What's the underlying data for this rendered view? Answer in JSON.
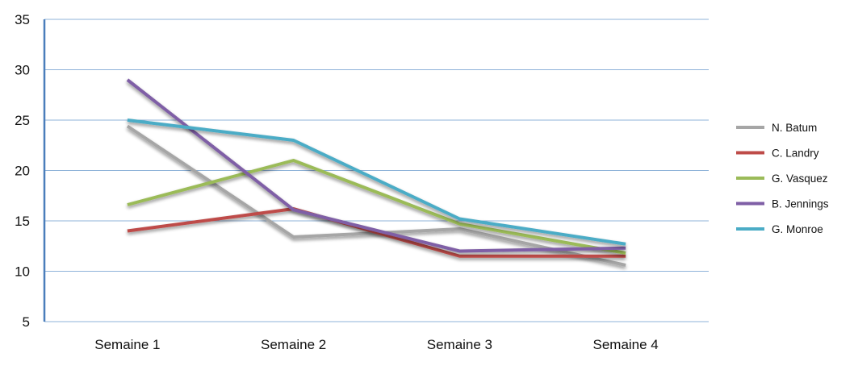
{
  "chart_data": {
    "type": "line",
    "title": "",
    "xlabel": "",
    "ylabel": "",
    "categories": [
      "Semaine 1",
      "Semaine 2",
      "Semaine 3",
      "Semaine 4"
    ],
    "ylim": [
      5,
      35
    ],
    "yticks": [
      5,
      10,
      15,
      20,
      25,
      30,
      35
    ],
    "grid": true,
    "legend_position": "right",
    "series": [
      {
        "name": "N. Batum",
        "color": "#a6a6a6",
        "values": [
          24.4,
          13.4,
          14.2,
          10.6
        ]
      },
      {
        "name": "C. Landry",
        "color": "#be4b48",
        "values": [
          14.0,
          16.2,
          11.5,
          11.5
        ]
      },
      {
        "name": "G. Vasquez",
        "color": "#9bbb59",
        "values": [
          16.6,
          21.0,
          14.7,
          11.8
        ]
      },
      {
        "name": "B. Jennings",
        "color": "#7f5fa6",
        "values": [
          29.0,
          16.1,
          12.0,
          12.3
        ]
      },
      {
        "name": "G. Monroe",
        "color": "#4bacc6",
        "values": [
          25.0,
          23.0,
          15.2,
          12.7
        ]
      }
    ]
  }
}
